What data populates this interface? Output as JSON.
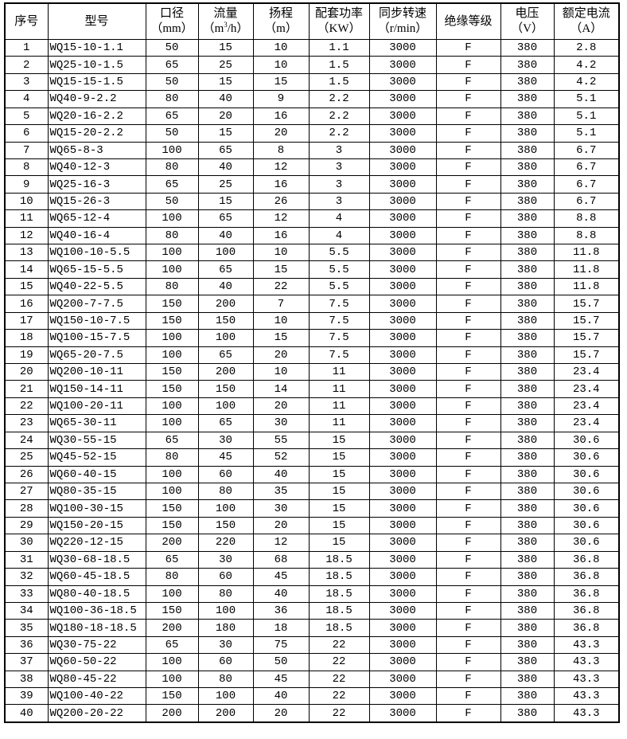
{
  "table": {
    "column_keys": [
      "seq",
      "model",
      "diameter",
      "flow",
      "head",
      "power",
      "speed",
      "insulation",
      "voltage",
      "current"
    ],
    "headers": {
      "seq": {
        "title": "序号"
      },
      "model": {
        "title": "型号"
      },
      "diameter": {
        "title": "口径",
        "unit": "（mm）"
      },
      "flow": {
        "title": "流量",
        "unit_pre": "（m",
        "unit_sup": "3",
        "unit_post": "/h）"
      },
      "head": {
        "title": "扬程",
        "unit": "（m）"
      },
      "power": {
        "title": "配套功率",
        "unit": "（KW）"
      },
      "speed": {
        "title": "同步转速",
        "unit": "（r/min）"
      },
      "insulation": {
        "title": "绝缘等级"
      },
      "voltage": {
        "title": "电压",
        "unit": "（V）"
      },
      "current": {
        "title": "额定电流",
        "unit": "（A）"
      }
    },
    "rows": [
      [
        "1",
        "WQ15-10-1.1",
        "50",
        "15",
        "10",
        "1.1",
        "3000",
        "F",
        "380",
        "2.8"
      ],
      [
        "2",
        "WQ25-10-1.5",
        "65",
        "25",
        "10",
        "1.5",
        "3000",
        "F",
        "380",
        "4.2"
      ],
      [
        "3",
        "WQ15-15-1.5",
        "50",
        "15",
        "15",
        "1.5",
        "3000",
        "F",
        "380",
        "4.2"
      ],
      [
        "4",
        "WQ40-9-2.2",
        "80",
        "40",
        "9",
        "2.2",
        "3000",
        "F",
        "380",
        "5.1"
      ],
      [
        "5",
        "WQ20-16-2.2",
        "65",
        "20",
        "16",
        "2.2",
        "3000",
        "F",
        "380",
        "5.1"
      ],
      [
        "6",
        "WQ15-20-2.2",
        "50",
        "15",
        "20",
        "2.2",
        "3000",
        "F",
        "380",
        "5.1"
      ],
      [
        "7",
        "WQ65-8-3",
        "100",
        "65",
        "8",
        "3",
        "3000",
        "F",
        "380",
        "6.7"
      ],
      [
        "8",
        "WQ40-12-3",
        "80",
        "40",
        "12",
        "3",
        "3000",
        "F",
        "380",
        "6.7"
      ],
      [
        "9",
        "WQ25-16-3",
        "65",
        "25",
        "16",
        "3",
        "3000",
        "F",
        "380",
        "6.7"
      ],
      [
        "10",
        "WQ15-26-3",
        "50",
        "15",
        "26",
        "3",
        "3000",
        "F",
        "380",
        "6.7"
      ],
      [
        "11",
        "WQ65-12-4",
        "100",
        "65",
        "12",
        "4",
        "3000",
        "F",
        "380",
        "8.8"
      ],
      [
        "12",
        "WQ40-16-4",
        "80",
        "40",
        "16",
        "4",
        "3000",
        "F",
        "380",
        "8.8"
      ],
      [
        "13",
        "WQ100-10-5.5",
        "100",
        "100",
        "10",
        "5.5",
        "3000",
        "F",
        "380",
        "11.8"
      ],
      [
        "14",
        "WQ65-15-5.5",
        "100",
        "65",
        "15",
        "5.5",
        "3000",
        "F",
        "380",
        "11.8"
      ],
      [
        "15",
        "WQ40-22-5.5",
        "80",
        "40",
        "22",
        "5.5",
        "3000",
        "F",
        "380",
        "11.8"
      ],
      [
        "16",
        "WQ200-7-7.5",
        "150",
        "200",
        "7",
        "7.5",
        "3000",
        "F",
        "380",
        "15.7"
      ],
      [
        "17",
        "WQ150-10-7.5",
        "150",
        "150",
        "10",
        "7.5",
        "3000",
        "F",
        "380",
        "15.7"
      ],
      [
        "18",
        "WQ100-15-7.5",
        "100",
        "100",
        "15",
        "7.5",
        "3000",
        "F",
        "380",
        "15.7"
      ],
      [
        "19",
        "WQ65-20-7.5",
        "100",
        "65",
        "20",
        "7.5",
        "3000",
        "F",
        "380",
        "15.7"
      ],
      [
        "20",
        "WQ200-10-11",
        "150",
        "200",
        "10",
        "11",
        "3000",
        "F",
        "380",
        "23.4"
      ],
      [
        "21",
        "WQ150-14-11",
        "150",
        "150",
        "14",
        "11",
        "3000",
        "F",
        "380",
        "23.4"
      ],
      [
        "22",
        "WQ100-20-11",
        "100",
        "100",
        "20",
        "11",
        "3000",
        "F",
        "380",
        "23.4"
      ],
      [
        "23",
        "WQ65-30-11",
        "100",
        "65",
        "30",
        "11",
        "3000",
        "F",
        "380",
        "23.4"
      ],
      [
        "24",
        "WQ30-55-15",
        "65",
        "30",
        "55",
        "15",
        "3000",
        "F",
        "380",
        "30.6"
      ],
      [
        "25",
        "WQ45-52-15",
        "80",
        "45",
        "52",
        "15",
        "3000",
        "F",
        "380",
        "30.6"
      ],
      [
        "26",
        "WQ60-40-15",
        "100",
        "60",
        "40",
        "15",
        "3000",
        "F",
        "380",
        "30.6"
      ],
      [
        "27",
        "WQ80-35-15",
        "100",
        "80",
        "35",
        "15",
        "3000",
        "F",
        "380",
        "30.6"
      ],
      [
        "28",
        "WQ100-30-15",
        "150",
        "100",
        "30",
        "15",
        "3000",
        "F",
        "380",
        "30.6"
      ],
      [
        "29",
        "WQ150-20-15",
        "150",
        "150",
        "20",
        "15",
        "3000",
        "F",
        "380",
        "30.6"
      ],
      [
        "30",
        "WQ220-12-15",
        "200",
        "220",
        "12",
        "15",
        "3000",
        "F",
        "380",
        "30.6"
      ],
      [
        "31",
        "WQ30-68-18.5",
        "65",
        "30",
        "68",
        "18.5",
        "3000",
        "F",
        "380",
        "36.8"
      ],
      [
        "32",
        "WQ60-45-18.5",
        "80",
        "60",
        "45",
        "18.5",
        "3000",
        "F",
        "380",
        "36.8"
      ],
      [
        "33",
        "WQ80-40-18.5",
        "100",
        "80",
        "40",
        "18.5",
        "3000",
        "F",
        "380",
        "36.8"
      ],
      [
        "34",
        "WQ100-36-18.5",
        "150",
        "100",
        "36",
        "18.5",
        "3000",
        "F",
        "380",
        "36.8"
      ],
      [
        "35",
        "WQ180-18-18.5",
        "200",
        "180",
        "18",
        "18.5",
        "3000",
        "F",
        "380",
        "36.8"
      ],
      [
        "36",
        "WQ30-75-22",
        "65",
        "30",
        "75",
        "22",
        "3000",
        "F",
        "380",
        "43.3"
      ],
      [
        "37",
        "WQ60-50-22",
        "100",
        "60",
        "50",
        "22",
        "3000",
        "F",
        "380",
        "43.3"
      ],
      [
        "38",
        "WQ80-45-22",
        "100",
        "80",
        "45",
        "22",
        "3000",
        "F",
        "380",
        "43.3"
      ],
      [
        "39",
        "WQ100-40-22",
        "150",
        "100",
        "40",
        "22",
        "3000",
        "F",
        "380",
        "43.3"
      ],
      [
        "40",
        "WQ200-20-22",
        "200",
        "200",
        "20",
        "22",
        "3000",
        "F",
        "380",
        "43.3"
      ]
    ]
  }
}
